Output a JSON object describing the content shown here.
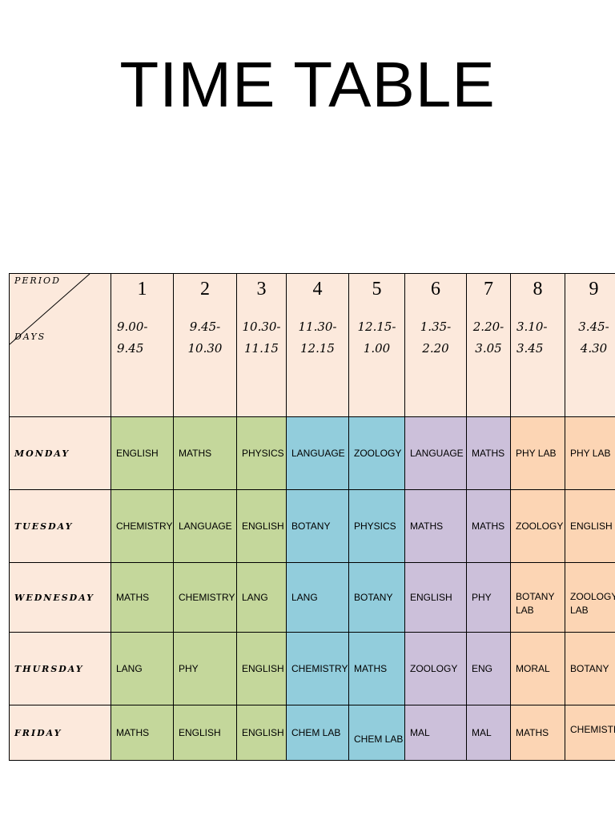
{
  "title": "TIME TABLE",
  "corner": {
    "period_label": "PERIOD",
    "days_label": "DAYS"
  },
  "periods": [
    {
      "num": "1",
      "start": "9.00-",
      "end": "9.45"
    },
    {
      "num": "2",
      "start": "9.45-",
      "end": "10.30"
    },
    {
      "num": "3",
      "start": "10.30-",
      "end": "11.15"
    },
    {
      "num": "4",
      "start": "11.30-",
      "end": "12.15"
    },
    {
      "num": "5",
      "start": "12.15-",
      "end": "1.00"
    },
    {
      "num": "6",
      "start": "1.35-",
      "end": "2.20"
    },
    {
      "num": "7",
      "start": "2.20-",
      "end": "3.05"
    },
    {
      "num": "8",
      "start": "3.10-",
      "end": "3.45"
    },
    {
      "num": "9",
      "start": "3.45-",
      "end": "4.30"
    }
  ],
  "rows": [
    {
      "day": "MONDAY",
      "subjects": [
        "ENGLISH",
        "MATHS",
        "PHYSICS",
        "LANGUAGE",
        "ZOOLOGY",
        "LANGUAGE",
        "MATHS",
        "PHY LAB",
        "PHY LAB"
      ]
    },
    {
      "day": "TUESDAY",
      "subjects": [
        "CHEMISTRY",
        "LANGUAGE",
        "ENGLISH",
        "BOTANY",
        "PHYSICS",
        "MATHS",
        "MATHS",
        "ZOOLOGY",
        "ENGLISH"
      ]
    },
    {
      "day": "WEDNESDAY",
      "subjects": [
        "MATHS",
        "CHEMISTRY",
        "LANG",
        "LANG",
        "BOTANY",
        "ENGLISH",
        "PHY",
        "BOTANY LAB",
        "ZOOLOGY LAB"
      ]
    },
    {
      "day": "THURSDAY",
      "subjects": [
        "LANG",
        "PHY",
        "ENGLISH",
        "CHEMISTRY",
        "MATHS",
        "ZOOLOGY",
        "ENG",
        "MORAL",
        "BOTANY"
      ]
    },
    {
      "day": "FRIDAY",
      "subjects": [
        "MATHS",
        "ENGLISH",
        "ENGLISH",
        "CHEM LAB",
        "CHEM LAB",
        "MAL",
        "MAL",
        "MATHS",
        "CHEMISTRY"
      ]
    }
  ],
  "colors": {
    "day_cells": "#fce9dc",
    "group_1": "#c4d79b",
    "group_2": "#92cddc",
    "group_3": "#ccc0da",
    "group_4": "#fcd5b4"
  }
}
